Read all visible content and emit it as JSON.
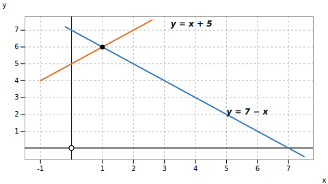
{
  "chart_data": {
    "type": "line",
    "xlabel": "x",
    "ylabel": "y",
    "xlim": [
      -1.5,
      7.8
    ],
    "ylim": [
      -0.7,
      7.8
    ],
    "xticks": [
      -1,
      1,
      2,
      3,
      4,
      5,
      6,
      7
    ],
    "yticks": [
      1,
      2,
      3,
      4,
      5,
      6,
      7
    ],
    "grid": true,
    "series": [
      {
        "color": "#E8732A",
        "x": [
          -1.0,
          2.6
        ],
        "values": [
          4.0,
          7.6
        ]
      },
      {
        "color": "#3D7EBF",
        "x": [
          -0.2,
          7.5
        ],
        "values": [
          7.2,
          -0.5
        ]
      }
    ],
    "points": [
      {
        "x": 1,
        "y": 6,
        "color": "#000000",
        "marker": "filled"
      },
      {
        "x": 0,
        "y": 0,
        "color": "#111111",
        "marker": "open"
      }
    ],
    "annotations": [
      {
        "text": "y = x + 5",
        "x": 3.2,
        "y": 7.35
      },
      {
        "text": "y = 7 − x",
        "x": 5.0,
        "y": 2.15
      }
    ]
  }
}
